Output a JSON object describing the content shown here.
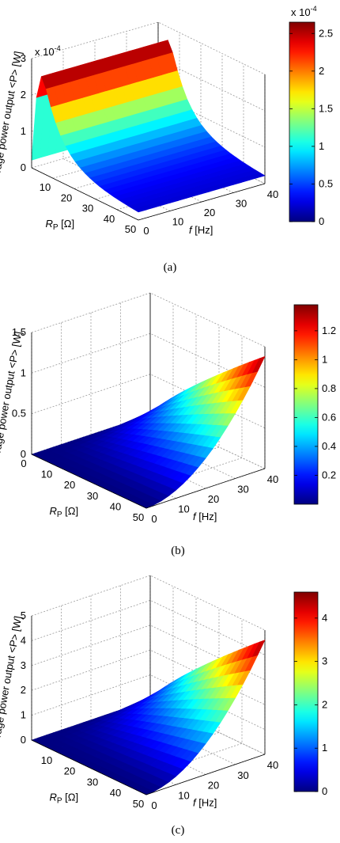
{
  "figure": {
    "panels": [
      {
        "label": "(a)",
        "zlabel": "Average power output <P> [W]",
        "xlabel": "R",
        "xlabel_sub": "P",
        "xlabel_unit": " [Ω]",
        "ylabel": "f",
        "ylabel_unit": " [Hz]",
        "z_exponent": "x 10",
        "z_exponent_power": "-4",
        "colorbar_exponent": "x 10",
        "colorbar_exponent_power": "-4"
      },
      {
        "label": "(b)",
        "zlabel": "Average power output <P> [W]",
        "xlabel": "R",
        "xlabel_sub": "P",
        "xlabel_unit": " [Ω]",
        "ylabel": "f",
        "ylabel_unit": " [Hz]"
      },
      {
        "label": "(c)",
        "zlabel": "Average power output <P> [W]",
        "xlabel": "R",
        "xlabel_sub": "P",
        "xlabel_unit": " [Ω]",
        "ylabel": "f",
        "ylabel_unit": " [Hz]"
      }
    ]
  },
  "chart_data": [
    {
      "type": "surface",
      "panel": "(a)",
      "x_name": "R_P [Ω]",
      "y_name": "f [Hz]",
      "z_name": "Average power output <P> [W]",
      "x_ticks": [
        10,
        20,
        30,
        40,
        50
      ],
      "y_ticks": [
        0,
        10,
        20,
        30,
        40
      ],
      "z_ticks": [
        0,
        1,
        2,
        3
      ],
      "z_tick_scale": 0.0001,
      "xlim": [
        0,
        50
      ],
      "ylim": [
        0,
        40
      ],
      "zlim": [
        0,
        3
      ],
      "colorbar_ticks": [
        0,
        0.5,
        1,
        1.5,
        2,
        2.5
      ],
      "colorbar_range": [
        0,
        2.65
      ],
      "colormap": "jet",
      "grid": true,
      "surface_trend": "rises steeply with R_P to a peak of about 2.6 near R_P ≈ 5 Ω, then decays to about 1.0 at R_P = 50 Ω; nearly constant along f"
    },
    {
      "type": "surface",
      "panel": "(b)",
      "x_name": "R_P [Ω]",
      "y_name": "f [Hz]",
      "z_name": "Average power output <P> [W]",
      "x_ticks": [
        0,
        10,
        20,
        30,
        40,
        50
      ],
      "y_ticks": [
        0,
        10,
        20,
        30,
        40
      ],
      "z_ticks": [
        0,
        0.5,
        1,
        1.5
      ],
      "xlim": [
        0,
        50
      ],
      "ylim": [
        0,
        40
      ],
      "zlim": [
        0,
        1.5
      ],
      "colorbar_ticks": [
        0.2,
        0.4,
        0.6,
        0.8,
        1,
        1.2
      ],
      "colorbar_range": [
        0,
        1.38
      ],
      "colormap": "jet",
      "grid": true,
      "surface_trend": "rises with both R_P and f, reaching a maximum of about 1.38 at R_P = 50 Ω, f = 40 Hz"
    },
    {
      "type": "surface",
      "panel": "(c)",
      "x_name": "R_P [Ω]",
      "y_name": "f [Hz]",
      "z_name": "Average power output <P> [W]",
      "x_ticks": [
        10,
        20,
        30,
        40,
        50
      ],
      "y_ticks": [
        0,
        10,
        20,
        30,
        40
      ],
      "z_ticks": [
        0,
        1,
        2,
        3,
        4,
        5
      ],
      "xlim": [
        0,
        50
      ],
      "ylim": [
        0,
        40
      ],
      "zlim": [
        0,
        5
      ],
      "colorbar_ticks": [
        0,
        1,
        2,
        3,
        4
      ],
      "colorbar_range": [
        0,
        4.6
      ],
      "colormap": "jet",
      "grid": true,
      "surface_trend": "rises with both R_P and f, reaching a maximum of about 4.6 at R_P = 50 Ω, f = 40 Hz"
    }
  ]
}
